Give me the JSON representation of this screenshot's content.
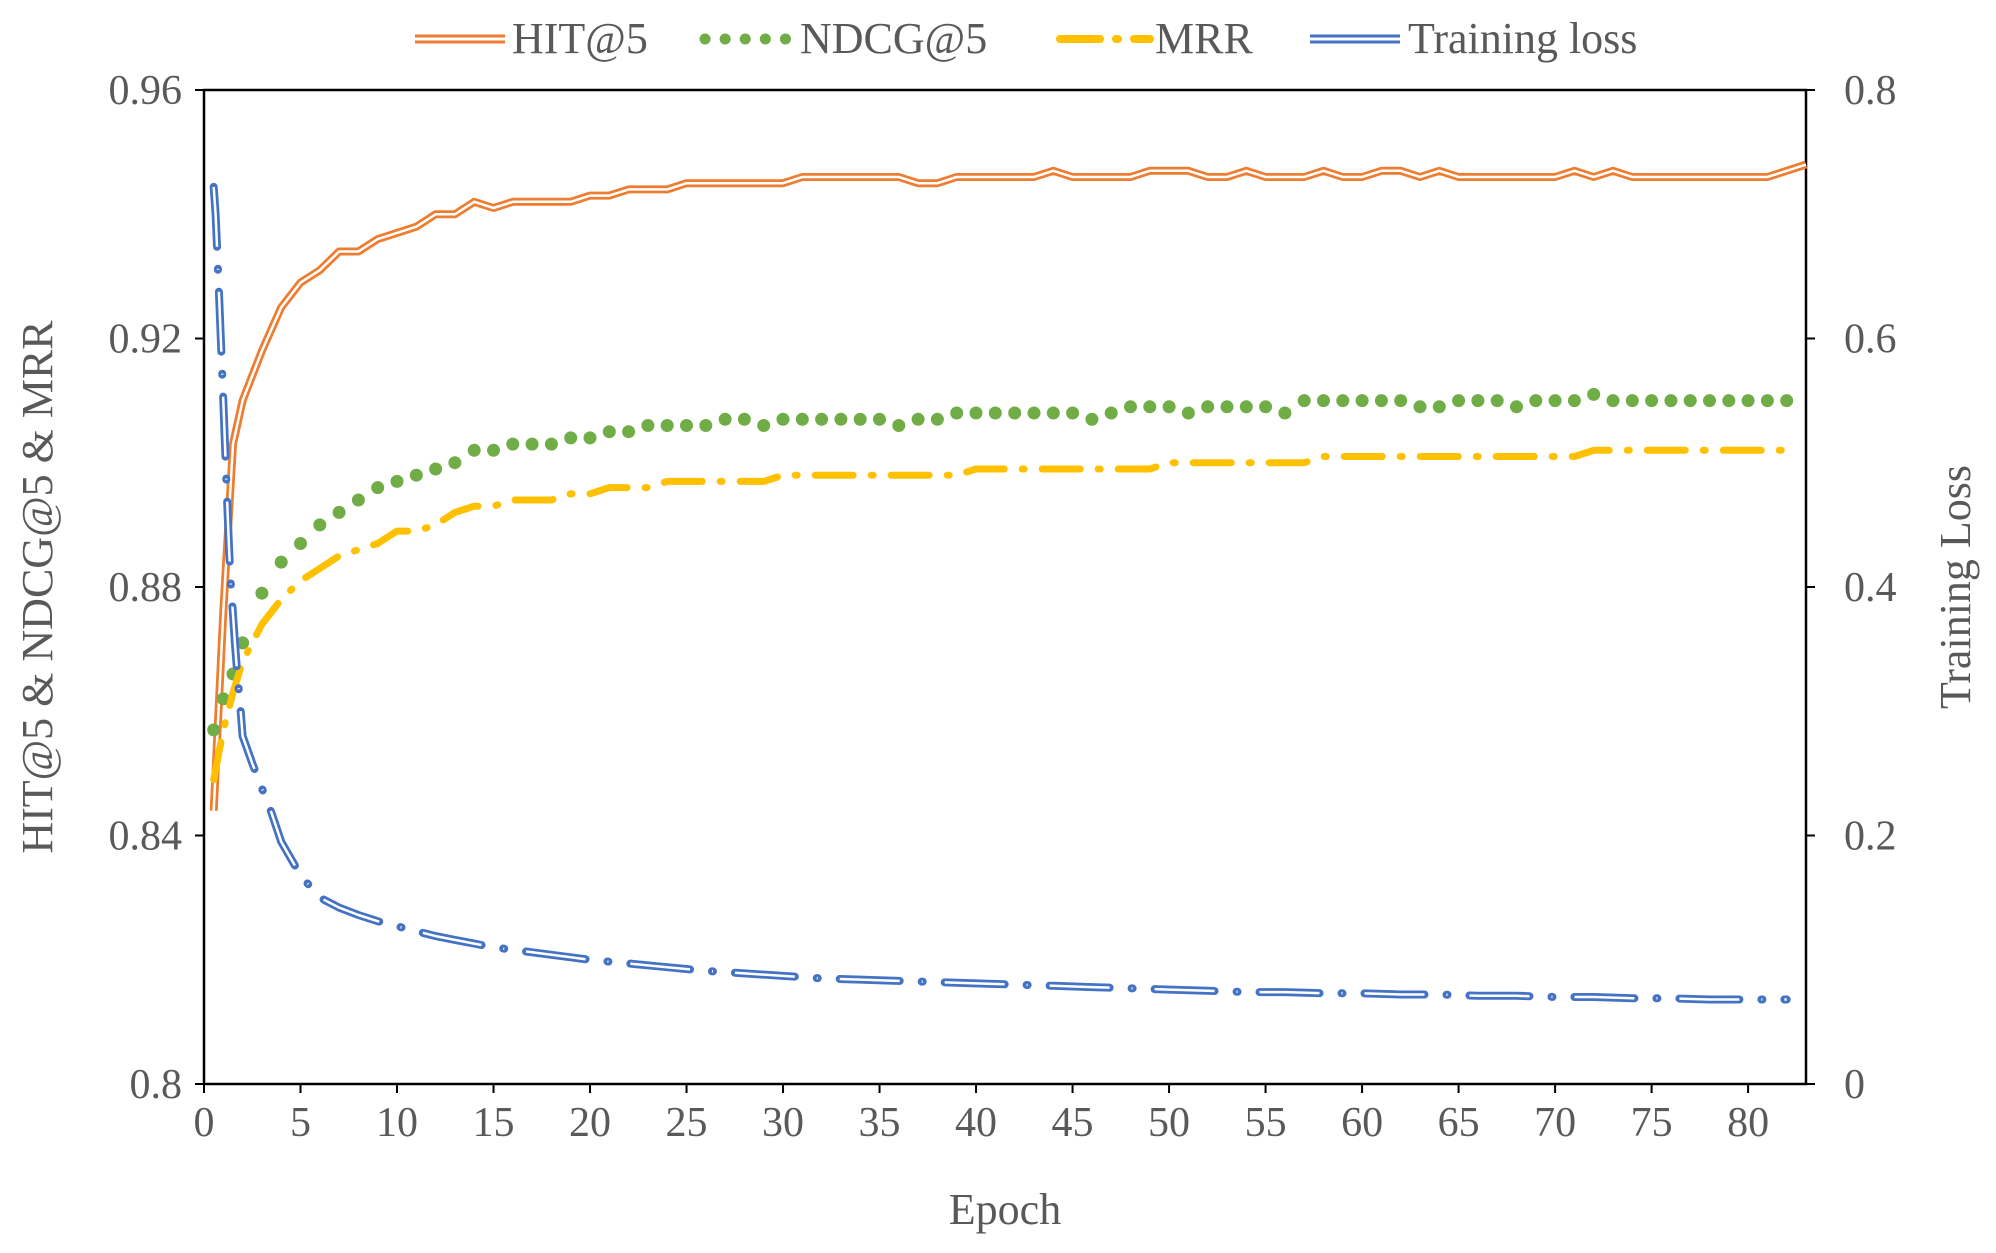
{
  "chart_data": {
    "type": "line",
    "title": "",
    "xlabel": "Epoch",
    "ylabel_left": "HIT@5 & NDCG@5 & MRR",
    "ylabel_right": "Training Loss",
    "xlim": [
      0,
      83
    ],
    "ylim_left": [
      0.8,
      0.96
    ],
    "ylim_right": [
      0,
      0.8
    ],
    "x_ticks": [
      0,
      5,
      10,
      15,
      20,
      25,
      30,
      35,
      40,
      45,
      50,
      55,
      60,
      65,
      70,
      75,
      80
    ],
    "x_tick_labels": [
      "0",
      "5",
      "10",
      "15",
      "20",
      "25",
      "30",
      "35",
      "40",
      "45",
      "50",
      "55",
      "60",
      "65",
      "70",
      "75",
      "80"
    ],
    "y_left_tick_labels": [
      "0.8",
      "0.84",
      "0.88",
      "0.92",
      "0.96"
    ],
    "y_right_tick_labels": [
      "0",
      "0.2",
      "0.4",
      "0.6",
      "0.8"
    ],
    "legend_position": "top",
    "grid": false,
    "series": [
      {
        "name": "HIT@5",
        "axis": "left",
        "style": "double-line",
        "color": "#ED7D31",
        "x": [
          0.5,
          1,
          1.5,
          2,
          3,
          4,
          5,
          6,
          7,
          8,
          9,
          10,
          11,
          12,
          13,
          14,
          15,
          16,
          17,
          18,
          19,
          20,
          21,
          22,
          23,
          24,
          25,
          26,
          27,
          28,
          29,
          30,
          31,
          32,
          33,
          34,
          35,
          36,
          37,
          38,
          39,
          40,
          41,
          42,
          43,
          44,
          45,
          46,
          47,
          48,
          49,
          50,
          51,
          52,
          53,
          54,
          55,
          56,
          57,
          58,
          59,
          60,
          61,
          62,
          63,
          64,
          65,
          66,
          67,
          68,
          69,
          70,
          71,
          72,
          73,
          74,
          75,
          76,
          77,
          78,
          79,
          80,
          81,
          82,
          83
        ],
        "values": [
          0.844,
          0.876,
          0.903,
          0.91,
          0.918,
          0.925,
          0.929,
          0.931,
          0.934,
          0.934,
          0.936,
          0.937,
          0.938,
          0.94,
          0.94,
          0.942,
          0.941,
          0.942,
          0.942,
          0.942,
          0.942,
          0.943,
          0.943,
          0.944,
          0.944,
          0.944,
          0.945,
          0.945,
          0.945,
          0.945,
          0.945,
          0.945,
          0.946,
          0.946,
          0.946,
          0.946,
          0.946,
          0.946,
          0.945,
          0.945,
          0.946,
          0.946,
          0.946,
          0.946,
          0.946,
          0.947,
          0.946,
          0.946,
          0.946,
          0.946,
          0.947,
          0.947,
          0.947,
          0.946,
          0.946,
          0.947,
          0.946,
          0.946,
          0.946,
          0.947,
          0.946,
          0.946,
          0.947,
          0.947,
          0.946,
          0.947,
          0.946,
          0.946,
          0.946,
          0.946,
          0.946,
          0.946,
          0.947,
          0.946,
          0.947,
          0.946,
          0.946,
          0.946,
          0.946,
          0.946,
          0.946,
          0.946,
          0.946,
          0.947,
          0.948
        ]
      },
      {
        "name": "NDCG@5",
        "axis": "left",
        "style": "dotted",
        "color": "#70AD47",
        "x": [
          0.5,
          1,
          1.5,
          2,
          3,
          4,
          5,
          6,
          7,
          8,
          9,
          10,
          11,
          12,
          13,
          14,
          15,
          16,
          17,
          18,
          19,
          20,
          21,
          22,
          23,
          24,
          25,
          26,
          27,
          28,
          29,
          30,
          31,
          32,
          33,
          34,
          35,
          36,
          37,
          38,
          39,
          40,
          41,
          42,
          43,
          44,
          45,
          46,
          47,
          48,
          49,
          50,
          51,
          52,
          53,
          54,
          55,
          56,
          57,
          58,
          59,
          60,
          61,
          62,
          63,
          64,
          65,
          66,
          67,
          68,
          69,
          70,
          71,
          72,
          73,
          74,
          75,
          76,
          77,
          78,
          79,
          80,
          81,
          82
        ],
        "values": [
          0.857,
          0.862,
          0.866,
          0.871,
          0.879,
          0.884,
          0.887,
          0.89,
          0.892,
          0.894,
          0.896,
          0.897,
          0.898,
          0.899,
          0.9,
          0.902,
          0.902,
          0.903,
          0.903,
          0.903,
          0.904,
          0.904,
          0.905,
          0.905,
          0.906,
          0.906,
          0.906,
          0.906,
          0.907,
          0.907,
          0.906,
          0.907,
          0.907,
          0.907,
          0.907,
          0.907,
          0.907,
          0.906,
          0.907,
          0.907,
          0.908,
          0.908,
          0.908,
          0.908,
          0.908,
          0.908,
          0.908,
          0.907,
          0.908,
          0.909,
          0.909,
          0.909,
          0.908,
          0.909,
          0.909,
          0.909,
          0.909,
          0.908,
          0.91,
          0.91,
          0.91,
          0.91,
          0.91,
          0.91,
          0.909,
          0.909,
          0.91,
          0.91,
          0.91,
          0.909,
          0.91,
          0.91,
          0.91,
          0.911,
          0.91,
          0.91,
          0.91,
          0.91,
          0.91,
          0.91,
          0.91,
          0.91,
          0.91,
          0.91
        ]
      },
      {
        "name": "MRR",
        "axis": "left",
        "style": "dash-dot",
        "color": "#FFC000",
        "x": [
          0.5,
          1,
          1.5,
          2,
          3,
          4,
          5,
          6,
          7,
          8,
          9,
          10,
          11,
          12,
          13,
          14,
          15,
          16,
          17,
          18,
          19,
          20,
          21,
          22,
          23,
          24,
          25,
          26,
          27,
          28,
          29,
          30,
          31,
          32,
          33,
          34,
          35,
          36,
          37,
          38,
          39,
          40,
          41,
          42,
          43,
          44,
          45,
          46,
          47,
          48,
          49,
          50,
          51,
          52,
          53,
          54,
          55,
          56,
          57,
          58,
          59,
          60,
          61,
          62,
          63,
          64,
          65,
          66,
          67,
          68,
          69,
          70,
          71,
          72,
          73,
          74,
          75,
          76,
          77,
          78,
          79,
          80,
          81,
          82
        ],
        "values": [
          0.849,
          0.857,
          0.863,
          0.868,
          0.874,
          0.878,
          0.881,
          0.883,
          0.885,
          0.886,
          0.887,
          0.889,
          0.889,
          0.89,
          0.892,
          0.893,
          0.893,
          0.894,
          0.894,
          0.894,
          0.895,
          0.895,
          0.896,
          0.896,
          0.896,
          0.897,
          0.897,
          0.897,
          0.897,
          0.897,
          0.897,
          0.898,
          0.898,
          0.898,
          0.898,
          0.898,
          0.898,
          0.898,
          0.898,
          0.898,
          0.898,
          0.899,
          0.899,
          0.899,
          0.899,
          0.899,
          0.899,
          0.899,
          0.899,
          0.899,
          0.899,
          0.9,
          0.9,
          0.9,
          0.9,
          0.9,
          0.9,
          0.9,
          0.9,
          0.901,
          0.901,
          0.901,
          0.901,
          0.901,
          0.901,
          0.901,
          0.901,
          0.901,
          0.901,
          0.901,
          0.901,
          0.901,
          0.901,
          0.902,
          0.902,
          0.902,
          0.902,
          0.902,
          0.902,
          0.902,
          0.902,
          0.902,
          0.902,
          0.902
        ]
      },
      {
        "name": "Training loss",
        "axis": "right",
        "style": "double-dash-dot",
        "color": "#4472C4",
        "x": [
          0.5,
          0.6,
          0.7,
          0.8,
          0.9,
          1,
          1.1,
          1.2,
          1.3,
          1.4,
          1.5,
          1.6,
          1.7,
          1.8,
          1.9,
          2,
          2.5,
          3,
          3.5,
          4,
          5,
          6,
          7,
          8,
          9,
          10,
          11,
          12,
          13,
          14,
          15,
          16,
          17,
          18,
          19,
          20,
          22,
          24,
          26,
          28,
          30,
          32,
          34,
          36,
          38,
          40,
          42,
          44,
          46,
          48,
          50,
          52,
          54,
          56,
          58,
          60,
          62,
          64,
          66,
          68,
          70,
          72,
          74,
          76,
          78,
          80,
          82
        ],
        "values": [
          0.722,
          0.7,
          0.665,
          0.628,
          0.588,
          0.55,
          0.51,
          0.468,
          0.43,
          0.4,
          0.378,
          0.355,
          0.335,
          0.318,
          0.3,
          0.28,
          0.258,
          0.238,
          0.218,
          0.195,
          0.168,
          0.15,
          0.142,
          0.136,
          0.131,
          0.127,
          0.123,
          0.119,
          0.116,
          0.113,
          0.11,
          0.108,
          0.106,
          0.104,
          0.102,
          0.1,
          0.097,
          0.094,
          0.091,
          0.089,
          0.087,
          0.085,
          0.084,
          0.083,
          0.082,
          0.081,
          0.08,
          0.079,
          0.078,
          0.077,
          0.076,
          0.075,
          0.074,
          0.074,
          0.073,
          0.073,
          0.072,
          0.072,
          0.071,
          0.071,
          0.07,
          0.07,
          0.069,
          0.069,
          0.068,
          0.068,
          0.068
        ]
      }
    ]
  }
}
